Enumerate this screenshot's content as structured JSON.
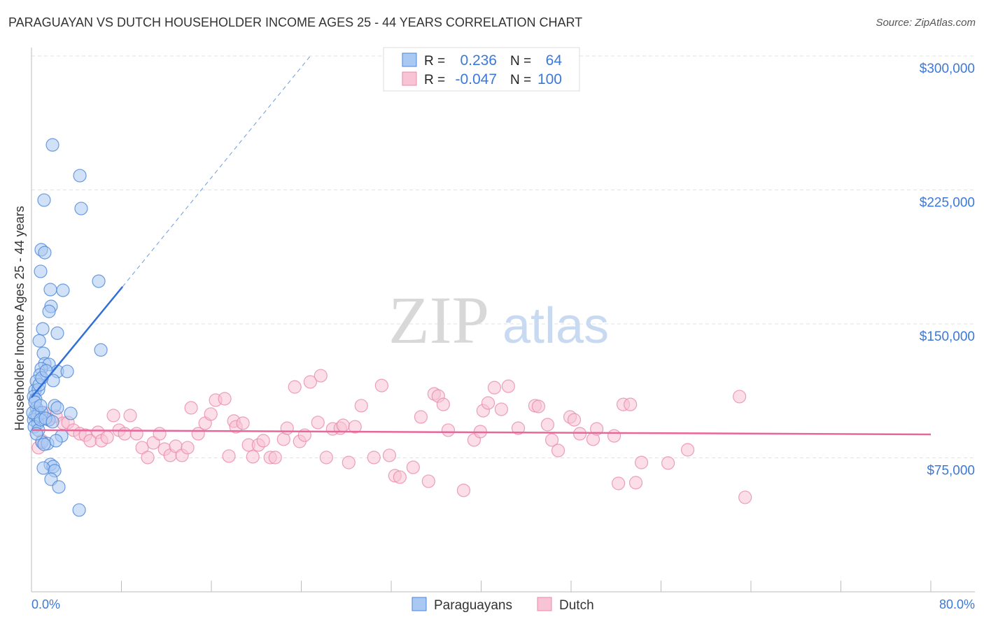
{
  "chart_data": {
    "type": "scatter",
    "title": "PARAGUAYAN VS DUTCH HOUSEHOLDER INCOME AGES 25 - 44 YEARS CORRELATION CHART",
    "source": "Source: ZipAtlas.com",
    "xlabel": "",
    "ylabel": "Householder Income Ages 25 - 44 years",
    "xlim": [
      0,
      80
    ],
    "ylim": [
      0,
      300000
    ],
    "x_tick_labels": [
      "0.0%",
      "80.0%"
    ],
    "y_ticks": [
      75000,
      150000,
      225000,
      300000
    ],
    "y_tick_labels": [
      "$75,000",
      "$150,000",
      "$225,000",
      "$300,000"
    ],
    "grid": true,
    "legend_position": "top-center",
    "legend": [
      {
        "name": "Paraguayans",
        "r_label": "R =",
        "r": "0.236",
        "n_label": "N =",
        "n": "64"
      },
      {
        "name": "Dutch",
        "r_label": "R =",
        "r": "-0.047",
        "n_label": "N =",
        "n": "100"
      }
    ],
    "watermark": "ZIPatlas",
    "colors": {
      "paraguayans": "#4a86d8",
      "paraguayans_fill": "#a9c9f2",
      "paraguayans_line": "#2f6fd6",
      "dutch": "#e98aaa",
      "dutch_fill": "#f8c3d4",
      "dutch_line": "#e8679a",
      "value_text": "#3c78d8"
    },
    "series": [
      {
        "name": "Paraguayans",
        "unit_x": "percent",
        "unit_y": "thousand USD",
        "trend": {
          "solid": [
            [
              0,
              108.8
            ],
            [
              8.1,
              170.8
            ]
          ],
          "dashed": [
            [
              8.1,
              170.8
            ],
            [
              24.9,
              300.7
            ]
          ]
        },
        "points": [
          [
            1.87,
            250.2
          ],
          [
            4.3,
            233
          ],
          [
            1.12,
            219.3
          ],
          [
            4.42,
            214.6
          ],
          [
            0.87,
            191.5
          ],
          [
            1.18,
            189.9
          ],
          [
            0.81,
            179.4
          ],
          [
            5.98,
            173.9
          ],
          [
            1.68,
            169.2
          ],
          [
            2.8,
            168.8
          ],
          [
            1.74,
            159.8
          ],
          [
            1.56,
            157
          ],
          [
            1.0,
            147.2
          ],
          [
            2.3,
            144.8
          ],
          [
            0.69,
            140.5
          ],
          [
            6.17,
            135.4
          ],
          [
            1.06,
            133.5
          ],
          [
            1.18,
            127.7
          ],
          [
            1.56,
            127.3
          ],
          [
            0.87,
            124.9
          ],
          [
            2.3,
            123.4
          ],
          [
            3.18,
            123.4
          ],
          [
            0.75,
            121.4
          ],
          [
            1.93,
            118.3
          ],
          [
            0.44,
            117.9
          ],
          [
            0.31,
            112.8
          ],
          [
            0.62,
            113.2
          ],
          [
            0.19,
            109.3
          ],
          [
            0.37,
            107.7
          ],
          [
            2.06,
            104.2
          ],
          [
            2.3,
            103
          ],
          [
            0.44,
            103
          ],
          [
            3.49,
            99.9
          ],
          [
            0.62,
            100.3
          ],
          [
            0.31,
            98.3
          ],
          [
            0.19,
            96.3
          ],
          [
            0.56,
            94.4
          ],
          [
            1.56,
            96.3
          ],
          [
            2.68,
            87.3
          ],
          [
            0.93,
            83.8
          ],
          [
            1.43,
            83
          ],
          [
            2.18,
            84.6
          ],
          [
            1.68,
            71.3
          ],
          [
            1.93,
            70.1
          ],
          [
            1.06,
            69.3
          ],
          [
            2.06,
            67.8
          ],
          [
            1.74,
            63
          ],
          [
            2.43,
            58.7
          ],
          [
            4.24,
            45.8
          ],
          [
            0.5,
            98.3
          ],
          [
            0.25,
            92.4
          ],
          [
            0.62,
            90.5
          ],
          [
            0.44,
            88.5
          ],
          [
            0.93,
            100.3
          ],
          [
            0.12,
            100.3
          ],
          [
            0.31,
            106.1
          ],
          [
            0.69,
            115.9
          ],
          [
            0.93,
            119.8
          ],
          [
            1.31,
            123.7
          ],
          [
            0.81,
            96.3
          ],
          [
            1.25,
            97.1
          ],
          [
            1.87,
            95.2
          ],
          [
            1.12,
            82.6
          ],
          [
            0.81,
            104.2
          ]
        ]
      },
      {
        "name": "Dutch",
        "unit_x": "percent",
        "unit_y": "thousand USD",
        "trend": {
          "solid": [
            [
              0,
              90.5
            ],
            [
              80,
              88.1
            ]
          ]
        },
        "points": [
          [
            0.62,
            80.7
          ],
          [
            0.93,
            84.6
          ],
          [
            1.12,
            100.3
          ],
          [
            1.56,
            96.3
          ],
          [
            2.18,
            98.3
          ],
          [
            2.8,
            94.4
          ],
          [
            3.24,
            94.8
          ],
          [
            3.74,
            90.5
          ],
          [
            4.3,
            88.5
          ],
          [
            4.8,
            87.7
          ],
          [
            5.23,
            84.6
          ],
          [
            5.92,
            89.3
          ],
          [
            6.23,
            84.6
          ],
          [
            6.73,
            86.5
          ],
          [
            7.29,
            98.7
          ],
          [
            7.79,
            90.5
          ],
          [
            8.29,
            88.5
          ],
          [
            8.78,
            98.7
          ],
          [
            9.35,
            88.5
          ],
          [
            9.84,
            80.7
          ],
          [
            10.34,
            75.2
          ],
          [
            10.84,
            83.4
          ],
          [
            11.4,
            88.5
          ],
          [
            11.84,
            79.9
          ],
          [
            12.34,
            76.4
          ],
          [
            12.83,
            81.5
          ],
          [
            13.39,
            76.4
          ],
          [
            13.89,
            80.7
          ],
          [
            14.2,
            103
          ],
          [
            14.83,
            88.5
          ],
          [
            15.45,
            94.4
          ],
          [
            15.95,
            99.5
          ],
          [
            16.38,
            107.3
          ],
          [
            17.19,
            108.1
          ],
          [
            17.56,
            76
          ],
          [
            18.0,
            95.6
          ],
          [
            18.19,
            92.4
          ],
          [
            18.81,
            94.4
          ],
          [
            19.31,
            82.2
          ],
          [
            19.69,
            75.6
          ],
          [
            20.19,
            82.2
          ],
          [
            20.62,
            84.6
          ],
          [
            21.24,
            75.2
          ],
          [
            21.68,
            75.2
          ],
          [
            22.43,
            85.4
          ],
          [
            22.74,
            91.6
          ],
          [
            23.42,
            114.7
          ],
          [
            23.86,
            84.2
          ],
          [
            24.3,
            87.7
          ],
          [
            24.8,
            117.5
          ],
          [
            25.48,
            94.8
          ],
          [
            25.73,
            121
          ],
          [
            26.23,
            75.2
          ],
          [
            26.79,
            91.2
          ],
          [
            27.47,
            91.6
          ],
          [
            27.72,
            93.2
          ],
          [
            28.22,
            72.4
          ],
          [
            28.78,
            92.4
          ],
          [
            29.34,
            104.2
          ],
          [
            30.46,
            75.2
          ],
          [
            31.15,
            115.5
          ],
          [
            31.84,
            76.4
          ],
          [
            32.33,
            65
          ],
          [
            32.77,
            64.2
          ],
          [
            33.95,
            69.7
          ],
          [
            34.64,
            97.9
          ],
          [
            35.32,
            61.9
          ],
          [
            35.82,
            110.8
          ],
          [
            36.19,
            109.6
          ],
          [
            36.63,
            104.9
          ],
          [
            37.07,
            90.5
          ],
          [
            38.44,
            56.8
          ],
          [
            39.37,
            85
          ],
          [
            39.93,
            89.7
          ],
          [
            40.18,
            101.4
          ],
          [
            40.62,
            105.7
          ],
          [
            41.18,
            114.3
          ],
          [
            41.8,
            102.2
          ],
          [
            42.42,
            115.1
          ],
          [
            43.3,
            91.6
          ],
          [
            44.79,
            104.2
          ],
          [
            45.1,
            103.8
          ],
          [
            45.91,
            93.6
          ],
          [
            46.29,
            85
          ],
          [
            46.85,
            79.1
          ],
          [
            47.91,
            97.9
          ],
          [
            48.28,
            96.3
          ],
          [
            48.78,
            88.5
          ],
          [
            49.96,
            85.4
          ],
          [
            50.28,
            91.2
          ],
          [
            51.83,
            87.3
          ],
          [
            52.21,
            60.7
          ],
          [
            52.64,
            104.9
          ],
          [
            53.27,
            104.9
          ],
          [
            53.76,
            61.1
          ],
          [
            54.26,
            72.4
          ],
          [
            56.63,
            72.1
          ],
          [
            58.37,
            79.5
          ],
          [
            62.98,
            109.3
          ],
          [
            63.48,
            52.9
          ]
        ]
      }
    ]
  }
}
